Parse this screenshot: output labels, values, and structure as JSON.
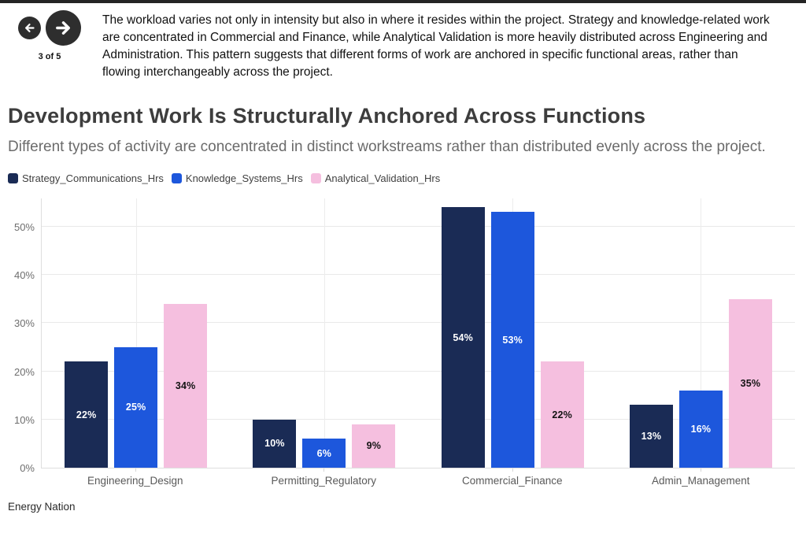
{
  "nav": {
    "page_indicator": "3 of 5",
    "back_icon": "arrow-left",
    "forward_icon": "arrow-right"
  },
  "commentary": "The workload varies not only in intensity but also in where it resides within the project. Strategy and knowledge-related work are concentrated in Commercial and Finance, while Analytical Validation is more heavily distributed across Engineering and Administration. This pattern suggests that different forms of work are anchored in specific functional areas, rather than flowing interchangeably across the project.",
  "title": "Development Work Is Structurally Anchored Across Functions",
  "subtitle": "Different types of activity are concentrated in distinct workstreams rather than distributed evenly across the project.",
  "footer": {
    "source_label": "Energy Nation"
  },
  "colors": {
    "accent_navy": "#1a2b55",
    "accent_blue": "#1d57dc",
    "accent_pink": "#f5bfdf",
    "nav_button": "#2e2e2e",
    "grid": "#e9e9e9"
  },
  "chart_data": {
    "type": "bar",
    "title": "Development Work Is Structurally Anchored Across Functions",
    "xlabel": "",
    "ylabel": "",
    "categories": [
      "Engineering_Design",
      "Permitting_Regulatory",
      "Commercial_Finance",
      "Admin_Management"
    ],
    "series": [
      {
        "name": "Strategy_Communications_Hrs",
        "color": "#1a2b55",
        "label_color": "#ffffff",
        "values": [
          22,
          10,
          54,
          13
        ]
      },
      {
        "name": "Knowledge_Systems_Hrs",
        "color": "#1d57dc",
        "label_color": "#ffffff",
        "values": [
          25,
          6,
          53,
          16
        ]
      },
      {
        "name": "Analytical_Validation_Hrs",
        "color": "#f5bfdf",
        "label_color": "#131313",
        "values": [
          34,
          9,
          22,
          35
        ]
      }
    ],
    "value_suffix": "%",
    "y_ticks": [
      "0%",
      "10%",
      "20%",
      "30%",
      "40%",
      "50%"
    ],
    "y_tick_values": [
      0,
      10,
      20,
      30,
      40,
      50
    ],
    "ylim": [
      0,
      56
    ],
    "grid": true,
    "legend_position": "top",
    "bar_labels": "centered"
  }
}
